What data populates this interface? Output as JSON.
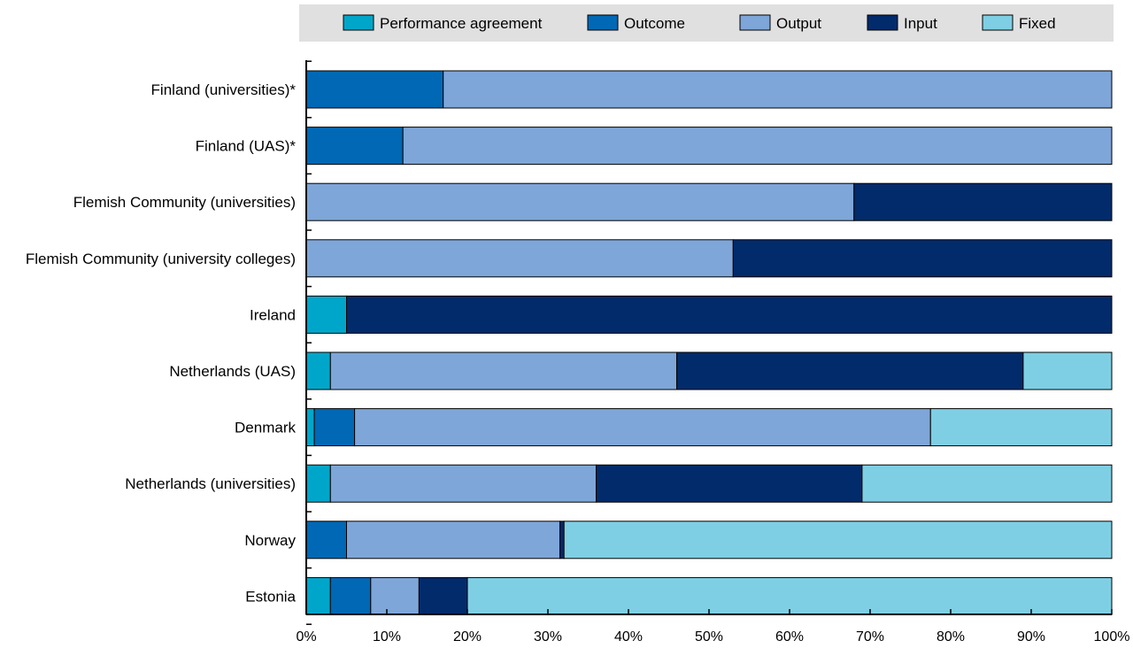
{
  "chart_data": {
    "type": "bar",
    "orientation": "horizontal",
    "stacked": true,
    "categories": [
      "Finland (universities)*",
      "Finland (UAS)*",
      "Flemish Community (universities)",
      "Flemish Community (university colleges)",
      "Ireland",
      "Netherlands (UAS)",
      "Denmark",
      "Netherlands (universities)",
      "Norway",
      "Estonia"
    ],
    "series": [
      {
        "name": "Performance agreement",
        "color": "#00A6C9",
        "values": [
          0,
          0,
          0,
          0,
          5,
          3,
          1,
          3,
          0,
          3
        ]
      },
      {
        "name": "Outcome",
        "color": "#0068B5",
        "values": [
          17,
          12,
          0,
          0,
          0,
          0,
          5,
          0,
          5,
          5
        ]
      },
      {
        "name": "Output",
        "color": "#7EA6D8",
        "values": [
          83,
          88,
          68,
          53,
          0,
          43,
          71.5,
          33,
          26.5,
          6
        ]
      },
      {
        "name": "Input",
        "color": "#022B6B",
        "values": [
          0,
          0,
          32,
          47,
          95,
          43,
          0,
          33,
          0.5,
          6
        ]
      },
      {
        "name": "Fixed",
        "color": "#7ECFE3",
        "values": [
          0,
          0,
          0,
          0,
          0,
          11,
          22.5,
          31,
          68,
          80
        ]
      }
    ],
    "x_ticks": [
      "0%",
      "10%",
      "20%",
      "30%",
      "40%",
      "50%",
      "60%",
      "70%",
      "80%",
      "90%",
      "100%"
    ],
    "xlim": [
      0,
      100
    ],
    "legend_position": "top",
    "grid": false,
    "title": "",
    "xlabel": "",
    "ylabel": ""
  }
}
